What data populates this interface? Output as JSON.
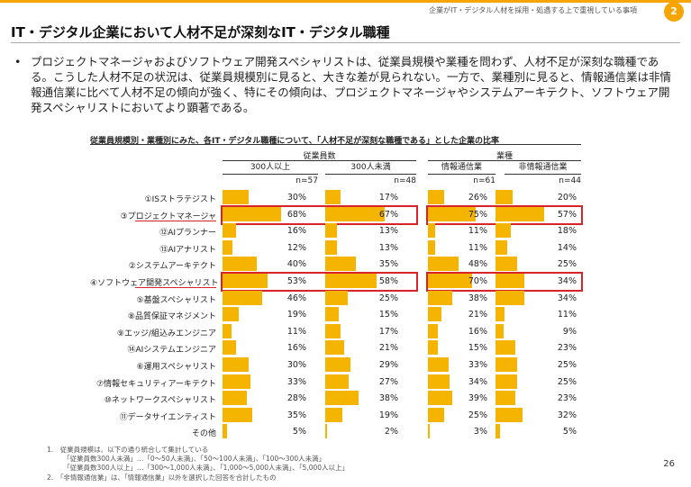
{
  "header": {
    "note": "企業がIT・デジタル人材を採用・処遇する上で重視している事項",
    "badge": "2"
  },
  "title": "IT・デジタル企業において人材不足が深刻なIT・デジタル職種",
  "bullet": "プロジェクトマネージャおよびソフトウェア開発スペシャリストは、従業員規模や業種を問わず、人材不足が深刻な職種である。こうした人材不足の状況は、従業員規模別に見ると、大きな差が見られない。一方で、業種別に見ると、情報通信業は非情報通信業に比べて人材不足の傾向が強く、特にその傾向は、プロジェクトマネージャやシステムアーキテクト、ソフトウェア開発スペシャリストにおいてより顕著である。",
  "chart_data": {
    "type": "bar",
    "title": "従業員規模別・業種別にみた、各IT・デジタル職種について、「人材不足が深刻な職種である」とした企業の比率",
    "groups": [
      {
        "label": "従業員数",
        "columns": [
          "300人以上",
          "300人未満"
        ]
      },
      {
        "label": "業種",
        "columns": [
          "情報通信業",
          "非情報通信業"
        ]
      }
    ],
    "columns": [
      "300人以上",
      "300人未満",
      "情報通信業",
      "非情報通信業"
    ],
    "n": [
      "n=57",
      "n=48",
      "n=61",
      "n=44"
    ],
    "categories": [
      "①ISストラテジスト",
      "③プロジェクトマネージャ",
      "⑫AIプランナー",
      "⑬AIアナリスト",
      "②システムアーキテクト",
      "④ソフトウェア開発スペシャリスト",
      "⑤基盤スペシャリスト",
      "⑧品質保証マネジメント",
      "⑨エッジ/組込みエンジニア",
      "⑭AIシステムエンジニア",
      "⑥運用スペシャリスト",
      "⑦情報セキュリティアーキテクト",
      "⑩ネットワークスペシャリスト",
      "⑪データサイエンティスト",
      "その他"
    ],
    "series": [
      {
        "name": "300人以上",
        "values": [
          30,
          68,
          16,
          12,
          40,
          53,
          46,
          19,
          11,
          16,
          30,
          33,
          28,
          35,
          5
        ]
      },
      {
        "name": "300人未満",
        "values": [
          17,
          67,
          13,
          13,
          35,
          58,
          25,
          15,
          17,
          21,
          29,
          27,
          38,
          19,
          2
        ]
      },
      {
        "name": "情報通信業",
        "values": [
          26,
          75,
          11,
          11,
          48,
          70,
          38,
          21,
          16,
          15,
          33,
          34,
          39,
          25,
          3
        ]
      },
      {
        "name": "非情報通信業",
        "values": [
          20,
          57,
          18,
          14,
          25,
          34,
          34,
          11,
          9,
          23,
          25,
          25,
          23,
          32,
          5
        ]
      }
    ],
    "value_suffix": "%",
    "highlighted_rows": [
      "③プロジェクトマネージャ",
      "④ソフトウェア開発スペシャリスト"
    ],
    "bar_color": "#f5b400",
    "highlight_color": "#d9232a"
  },
  "notes": [
    "1.　従業員規模は、以下の通り統合して集計している",
    "「従業員数300人未満」…「0～50人未満」、「50～100人未満」、「100～300人未満」",
    "「従業員数300人以上」…「300～1,000人未満」、「1,000～5,000人未満」、「5,000人以上」",
    "2.　「非情報通信業」は、「情報通信業」以外を選択した回答を合計したもの"
  ],
  "page_number": "26"
}
